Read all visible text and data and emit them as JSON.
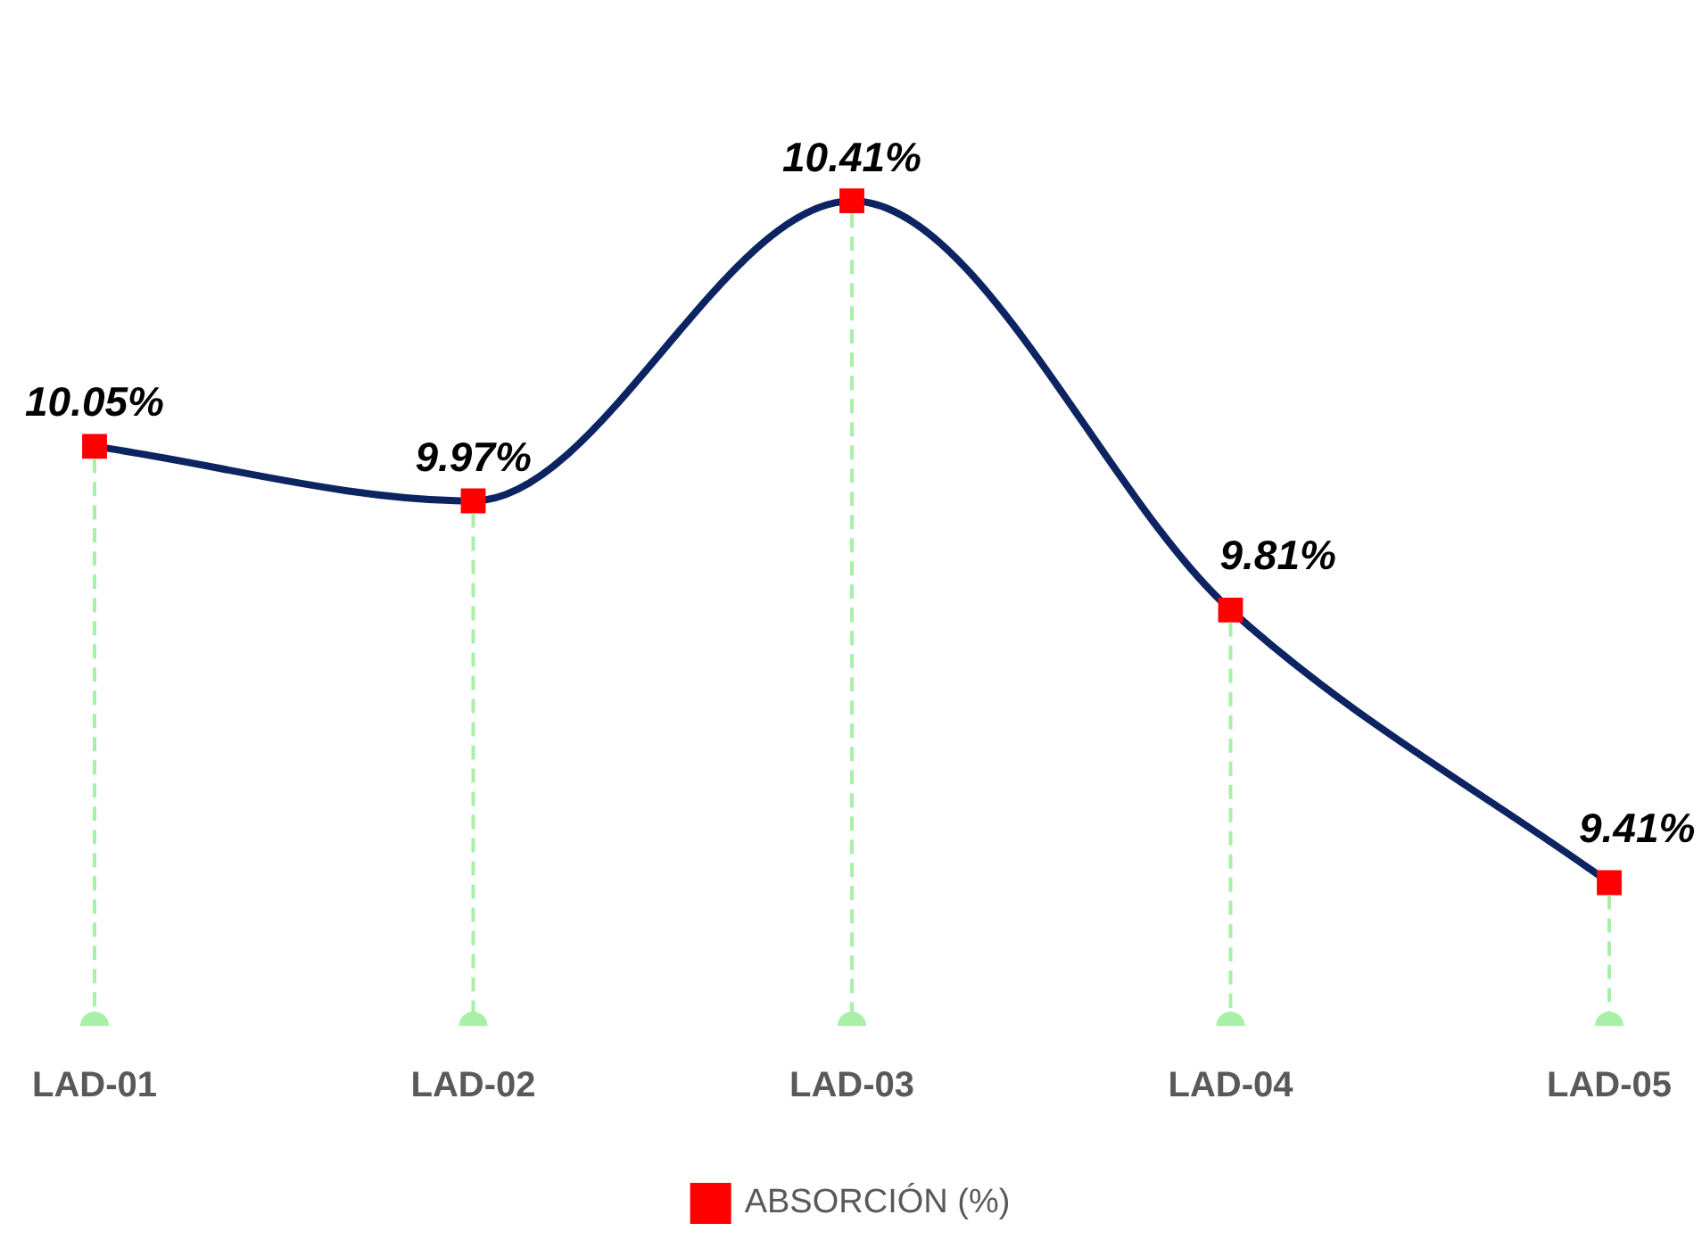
{
  "chart_data": {
    "type": "line",
    "categories": [
      "LAD-01",
      "LAD-02",
      "LAD-03",
      "LAD-04",
      "LAD-05"
    ],
    "series": [
      {
        "name": "ABSORCIÓN (%)",
        "color": "#0c2461",
        "colors": [
          "#ff0000",
          "#ff0000",
          "#ff0000",
          "#ff0000",
          "#ff0000"
        ],
        "values": [
          10.05,
          9.97,
          10.41,
          9.81,
          9.41
        ],
        "value_labels": [
          "10.05%",
          "9.97%",
          "10.41%",
          "9.81%",
          "9.41%"
        ]
      }
    ],
    "grid": "x",
    "tick_labels": "x",
    "legend": "bottom",
    "marker": "square",
    "line_style": "solid"
  }
}
